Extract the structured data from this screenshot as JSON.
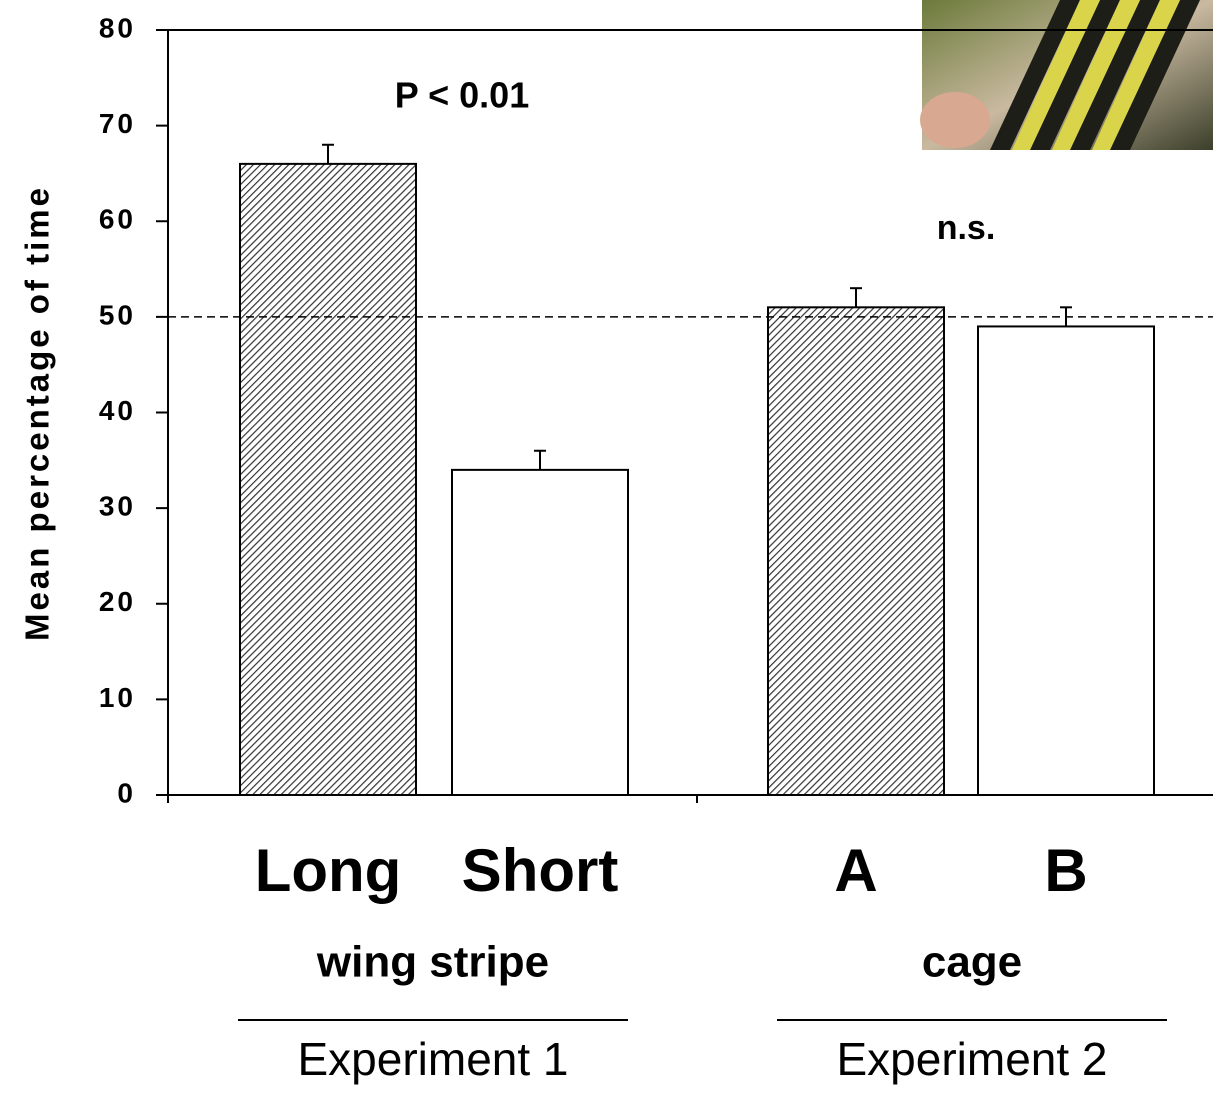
{
  "chart_data": {
    "type": "bar",
    "y_label": "Mean percentage of time",
    "categories": [
      "Long",
      "Short",
      "A",
      "B"
    ],
    "values": [
      66,
      34,
      51,
      49
    ],
    "errors": [
      2,
      2,
      2,
      2
    ],
    "hatched": [
      true,
      false,
      true,
      false
    ],
    "groups": [
      {
        "name": "wing stripe",
        "experiment": "Experiment 1"
      },
      {
        "name": "cage",
        "experiment": "Experiment 2"
      }
    ],
    "annotations": [
      "P < 0.01",
      "n.s."
    ],
    "reference_line": 50,
    "ylim": [
      0,
      80
    ],
    "yticks": [
      0,
      10,
      20,
      30,
      40,
      50,
      60,
      70,
      80
    ]
  }
}
